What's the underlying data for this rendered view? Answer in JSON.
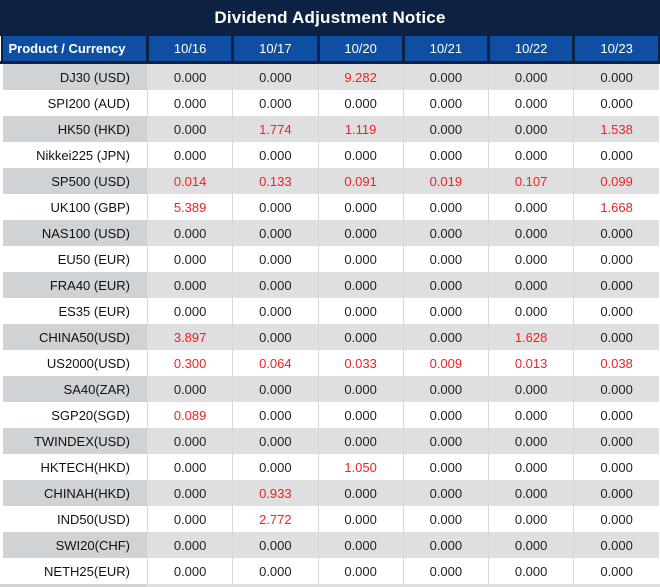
{
  "title": "Dividend Adjustment Notice",
  "colors": {
    "title_bg": "#0d2142",
    "header_bg": "#0e4fa3",
    "stripe_product": "#d0d3d6",
    "stripe_data": "#dfdfdf",
    "value_red": "#ee2222",
    "value_black": "#1f1f1f"
  },
  "table": {
    "product_header": "Product / Currency",
    "date_headers": [
      "10/16",
      "10/17",
      "10/20",
      "10/21",
      "10/22",
      "10/23"
    ],
    "rows": [
      {
        "product": "DJ30 (USD)",
        "values": [
          "0.000",
          "0.000",
          "9.282",
          "0.000",
          "0.000",
          "0.000"
        ]
      },
      {
        "product": "SPI200 (AUD)",
        "values": [
          "0.000",
          "0.000",
          "0.000",
          "0.000",
          "0.000",
          "0.000"
        ]
      },
      {
        "product": "HK50 (HKD)",
        "values": [
          "0.000",
          "1.774",
          "1.119",
          "0.000",
          "0.000",
          "1.538"
        ]
      },
      {
        "product": "Nikkei225 (JPN)",
        "values": [
          "0.000",
          "0.000",
          "0.000",
          "0.000",
          "0.000",
          "0.000"
        ]
      },
      {
        "product": "SP500 (USD)",
        "values": [
          "0.014",
          "0.133",
          "0.091",
          "0.019",
          "0.107",
          "0.099"
        ]
      },
      {
        "product": "UK100 (GBP)",
        "values": [
          "5.389",
          "0.000",
          "0.000",
          "0.000",
          "0.000",
          "1.668"
        ]
      },
      {
        "product": "NAS100 (USD)",
        "values": [
          "0.000",
          "0.000",
          "0.000",
          "0.000",
          "0.000",
          "0.000"
        ]
      },
      {
        "product": "EU50 (EUR)",
        "values": [
          "0.000",
          "0.000",
          "0.000",
          "0.000",
          "0.000",
          "0.000"
        ]
      },
      {
        "product": "FRA40 (EUR)",
        "values": [
          "0.000",
          "0.000",
          "0.000",
          "0.000",
          "0.000",
          "0.000"
        ]
      },
      {
        "product": "ES35 (EUR)",
        "values": [
          "0.000",
          "0.000",
          "0.000",
          "0.000",
          "0.000",
          "0.000"
        ]
      },
      {
        "product": "CHINA50(USD)",
        "values": [
          "3.897",
          "0.000",
          "0.000",
          "0.000",
          "1.628",
          "0.000"
        ]
      },
      {
        "product": "US2000(USD)",
        "values": [
          "0.300",
          "0.064",
          "0.033",
          "0.009",
          "0.013",
          "0.038"
        ]
      },
      {
        "product": "SA40(ZAR)",
        "values": [
          "0.000",
          "0.000",
          "0.000",
          "0.000",
          "0.000",
          "0.000"
        ]
      },
      {
        "product": "SGP20(SGD)",
        "values": [
          "0.089",
          "0.000",
          "0.000",
          "0.000",
          "0.000",
          "0.000"
        ]
      },
      {
        "product": "TWINDEX(USD)",
        "values": [
          "0.000",
          "0.000",
          "0.000",
          "0.000",
          "0.000",
          "0.000"
        ]
      },
      {
        "product": "HKTECH(HKD)",
        "values": [
          "0.000",
          "0.000",
          "1.050",
          "0.000",
          "0.000",
          "0.000"
        ]
      },
      {
        "product": "CHINAH(HKD)",
        "values": [
          "0.000",
          "0.933",
          "0.000",
          "0.000",
          "0.000",
          "0.000"
        ]
      },
      {
        "product": "IND50(USD)",
        "values": [
          "0.000",
          "2.772",
          "0.000",
          "0.000",
          "0.000",
          "0.000"
        ]
      },
      {
        "product": "SWI20(CHF)",
        "values": [
          "0.000",
          "0.000",
          "0.000",
          "0.000",
          "0.000",
          "0.000"
        ]
      },
      {
        "product": "NETH25(EUR)",
        "values": [
          "0.000",
          "0.000",
          "0.000",
          "0.000",
          "0.000",
          "0.000"
        ]
      }
    ]
  }
}
